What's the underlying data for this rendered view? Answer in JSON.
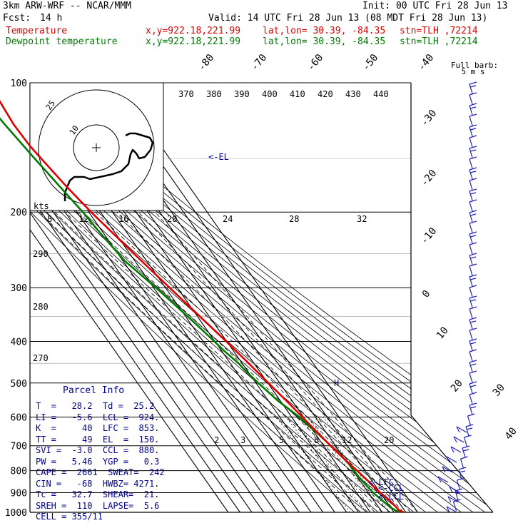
{
  "header": {
    "model": "3km ARW-WRF -- NCAR/MMM",
    "init": "Init: 00 UTC Fri 28 Jun 13",
    "fcst_label": "Fcst:",
    "fcst_value": "14 h",
    "valid": "Valid: 14 UTC Fri 28 Jun 13 (08 MDT Fri 28 Jun 13)",
    "temp_name": "Temperature",
    "temp_xy": "x,y=922.18,221.99",
    "temp_latlon": "lat,lon= 30.39, -84.35",
    "temp_stn": "stn=TLH ,72214",
    "dew_name": "Dewpoint temperature",
    "dew_xy": "x,y=922.18,221.99",
    "dew_latlon": "lat,lon= 30.39, -84.35",
    "dew_stn": "stn=TLH ,72214"
  },
  "parcel_info": {
    "title": "Parcel Info",
    "rows": [
      "T  =   28.2  Td =  25.2",
      "LI =   -5.6  LCL =  924.",
      "K  =     40  LFC =  853.",
      "TT =     49  EL  =  150.",
      "SVI =  -3.0  CCL =  880.",
      "PW =   5.46  YGP =   0.3",
      "CAPE =  2661  SWEAT=  242",
      "CIN =   -68  HWBZ= 4271.",
      "Tc =   32.7  SHEAR=  21.",
      "SREH =  110  LAPSE=  5.6",
      "CELL = 355/11"
    ]
  },
  "colors": {
    "temperature": "#e00000",
    "dewpoint": "#007a00",
    "info": "#00008c",
    "barbs": "#2020c0"
  },
  "chart_data": {
    "type": "line",
    "chart_kind": "skew-T log-P sounding",
    "pressure_levels": [
      100,
      200,
      300,
      400,
      500,
      600,
      700,
      800,
      900,
      1000
    ],
    "isotherm_labels": [
      "-80",
      "-70",
      "-60",
      "-50",
      "-40",
      "-30",
      "-20",
      "-10",
      "0",
      "10",
      "20",
      "30",
      "40"
    ],
    "theta_labels": [
      "370",
      "380",
      "390",
      "400",
      "410",
      "420",
      "430",
      "440"
    ],
    "theta_left_labels": [
      "290",
      "280",
      "270"
    ],
    "mixing_ratio_labels": [
      "2",
      "3",
      "5",
      "8",
      "12",
      "20"
    ],
    "wind_speed_labels": [
      "8",
      "12",
      "16",
      "20",
      "24",
      "28",
      "32"
    ],
    "hodograph_ring_labels": [
      "10",
      "25"
    ],
    "hodograph_units": "kts",
    "barb_legend": [
      "Full barb:",
      "5 m s"
    ],
    "level_markers": [
      "<-EL",
      "<-LFC",
      "<-CCL",
      "<-LCL"
    ],
    "height_marker": "H",
    "temperature": {
      "p": [
        1000,
        990,
        975,
        950,
        925,
        900,
        875,
        850,
        825,
        800,
        775,
        750,
        700,
        650,
        600,
        550,
        500,
        450,
        400,
        350,
        300,
        250,
        200,
        175,
        150,
        140,
        125,
        110,
        100
      ],
      "t": [
        28.2,
        25.5,
        25.0,
        24.0,
        22.3,
        20.0,
        18.3,
        17.0,
        15.2,
        13.5,
        11.5,
        9.6,
        5.8,
        2.5,
        -1.0,
        -4.8,
        -9.5,
        -14.5,
        -20.5,
        -28.0,
        -36.5,
        -46.5,
        -58.0,
        -63.5,
        -68.5,
        -70.5,
        -71.5,
        -69.5,
        -67.5
      ]
    },
    "dewpoint": {
      "p": [
        1000,
        990,
        975,
        950,
        925,
        900,
        875,
        850,
        825,
        800,
        775,
        750,
        700,
        650,
        600,
        550,
        500,
        470,
        450,
        420,
        400,
        360,
        300,
        260,
        250,
        230,
        200,
        150,
        125,
        100
      ],
      "td": [
        25.2,
        22.5,
        20.0,
        18.0,
        16.0,
        14.0,
        13.0,
        12.0,
        11.2,
        10.8,
        10.6,
        9.4,
        6.0,
        1.8,
        -3.5,
        -12.0,
        -18.0,
        -21.5,
        -23.0,
        -28.0,
        -30.5,
        -36.5,
        -48.0,
        -58.5,
        -59.5,
        -62.0,
        -65.0,
        -74.0,
        -79.0,
        -84.0
      ]
    }
  }
}
